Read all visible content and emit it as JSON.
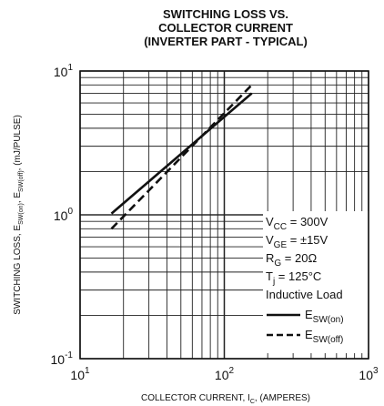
{
  "chart_data": {
    "type": "line",
    "title_lines": [
      "SWITCHING LOSS VS.",
      "COLLECTOR CURRENT",
      "(INVERTER PART - TYPICAL)"
    ],
    "xlabel": {
      "main": "COLLECTOR CURRENT, I",
      "sub": "C",
      "tail": ", (AMPERES)"
    },
    "ylabel": {
      "p1": "SWITCHING LOSS, E",
      "s1": "SW(on)",
      "p2": ", E",
      "s2": "SW(off)",
      "p3": ", (mJ/PULSE)"
    },
    "x_scale": "log",
    "y_scale": "log",
    "xlim": [
      10,
      1000
    ],
    "ylim": [
      0.1,
      10
    ],
    "grid": true,
    "x_ticks": [
      {
        "base": "10",
        "exp": "1",
        "value": 10
      },
      {
        "base": "10",
        "exp": "2",
        "value": 100
      },
      {
        "base": "10",
        "exp": "3",
        "value": 1000
      }
    ],
    "y_ticks": [
      {
        "base": "10",
        "exp": "-1",
        "value": 0.1
      },
      {
        "base": "10",
        "exp": "0",
        "value": 1
      },
      {
        "base": "10",
        "exp": "1",
        "value": 10
      }
    ],
    "conditions": [
      {
        "main": "V",
        "sub": "CC",
        "rest": " = 300V"
      },
      {
        "main": "V",
        "sub": "GE",
        "rest": " = ±15V"
      },
      {
        "main": "R",
        "sub": "G",
        "rest": " = 20Ω"
      },
      {
        "main": "T",
        "sub": "j",
        "rest": " = 125°C"
      },
      {
        "main": "Inductive Load",
        "sub": "",
        "rest": ""
      }
    ],
    "series": [
      {
        "main": "E",
        "sub": "SW(on)",
        "style": "solid",
        "x": [
          16.5,
          155
        ],
        "y": [
          1.02,
          7.0
        ]
      },
      {
        "main": "E",
        "sub": "SW(off)",
        "style": "dashed",
        "x": [
          16.5,
          155
        ],
        "y": [
          0.8,
          8.0
        ]
      }
    ]
  }
}
